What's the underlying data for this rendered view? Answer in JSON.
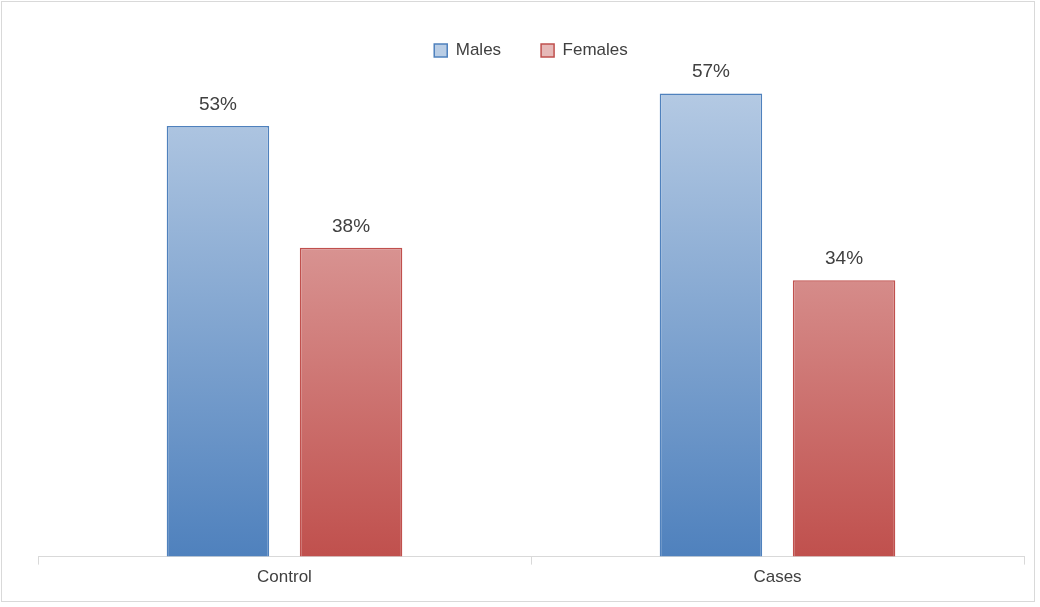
{
  "chart_data": {
    "type": "bar",
    "categories": [
      "Control",
      "Cases"
    ],
    "series": [
      {
        "name": "Males",
        "color": "#4f81bd",
        "values": [
          53,
          57
        ],
        "value_labels": [
          "53%",
          "57%"
        ]
      },
      {
        "name": "Females",
        "color": "#c0504d",
        "values": [
          38,
          34
        ],
        "value_labels": [
          "38%",
          "34%"
        ]
      }
    ],
    "legend": "top",
    "grid": false
  }
}
